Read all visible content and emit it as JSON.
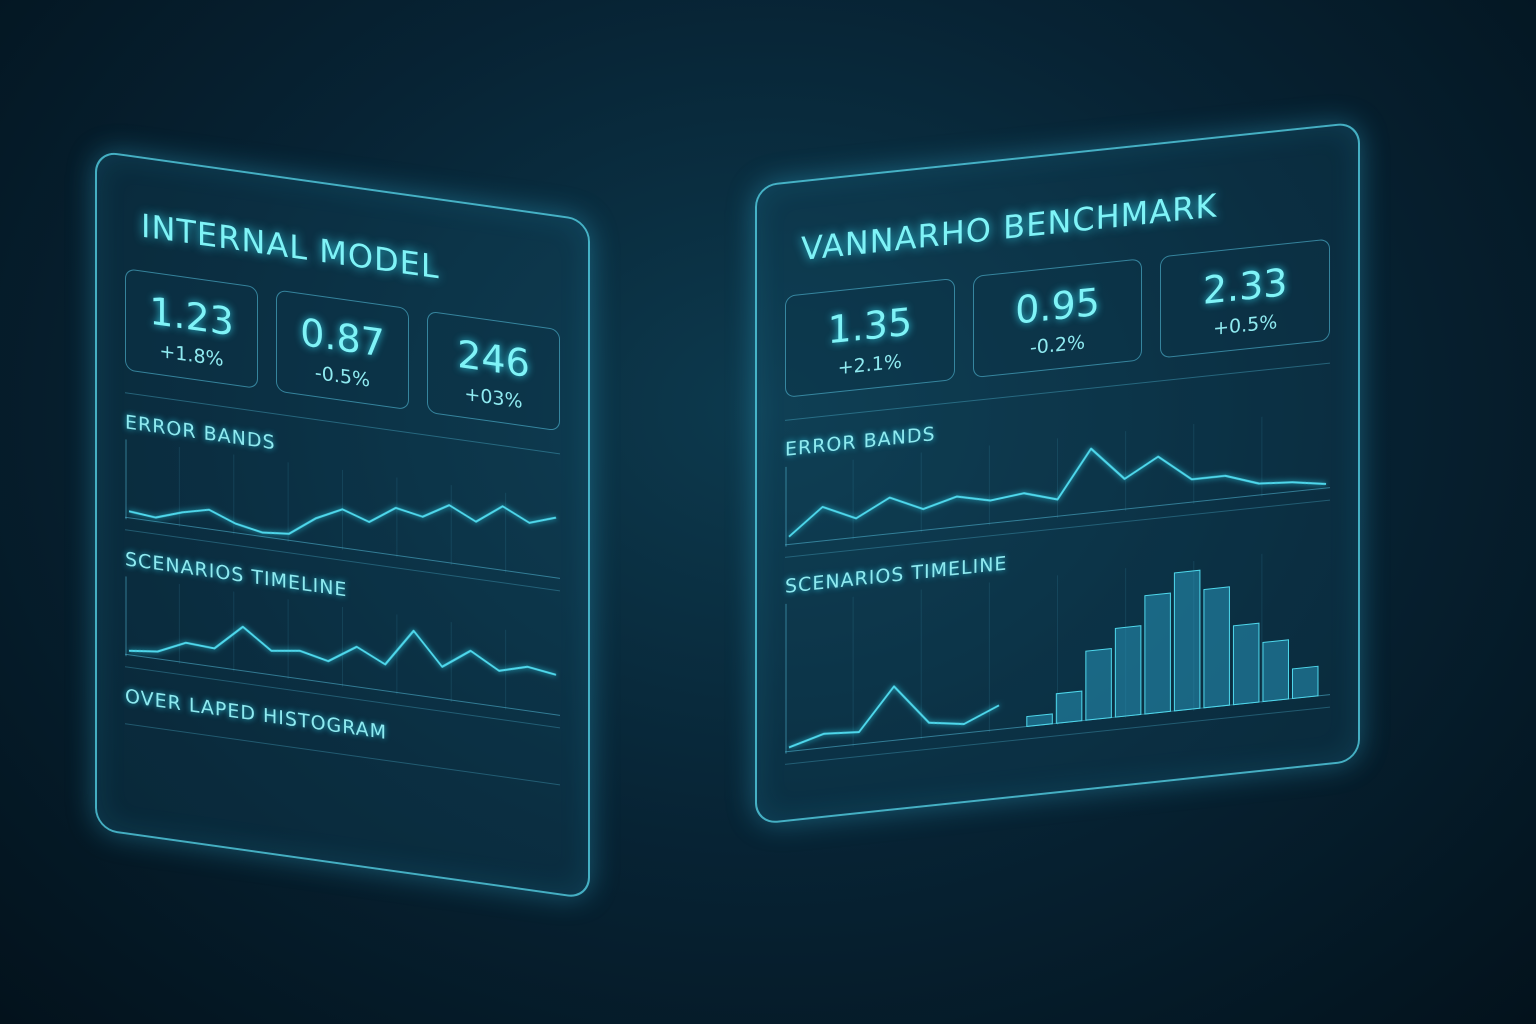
{
  "panels": [
    {
      "title": "INTERNAL MODEL",
      "kpis": [
        {
          "value": "1.23",
          "change": "+1.8%"
        },
        {
          "value": "0.87",
          "change": "-0.5%"
        },
        {
          "value": "246",
          "change": "+03%"
        }
      ],
      "sections": [
        {
          "label": "ERROR BANDS",
          "line": [
            30,
            28,
            35,
            40,
            32,
            28,
            30,
            45,
            55,
            48,
            62,
            58,
            70,
            60,
            75,
            65,
            72
          ]
        },
        {
          "label": "SCENARIOS TIMELINE",
          "line": [
            10,
            14,
            30,
            28,
            60,
            35,
            40,
            32,
            55,
            38,
            85,
            45,
            70,
            50,
            60,
            55
          ]
        },
        {
          "label": "OVER LAPED HISTOGRAM"
        }
      ]
    },
    {
      "title": "VANNARHO BENCHMARK",
      "kpis": [
        {
          "value": "1.35",
          "change": "+2.1%"
        },
        {
          "value": "0.95",
          "change": "-0.2%"
        },
        {
          "value": "2.33",
          "change": "+0.5%"
        }
      ],
      "sections": [
        {
          "label": "ERROR BANDS",
          "line": [
            10,
            45,
            25,
            48,
            28,
            40,
            30,
            35,
            22,
            85,
            40,
            65,
            30,
            30,
            15,
            12,
            5
          ]
        },
        {
          "label": "SCENARIOS TIMELINE",
          "line": [
            20,
            30,
            28,
            70,
            30,
            25,
            40
          ],
          "bars": [
            5,
            15,
            35,
            45,
            60,
            70,
            60,
            40,
            30,
            15
          ]
        }
      ]
    }
  ]
}
